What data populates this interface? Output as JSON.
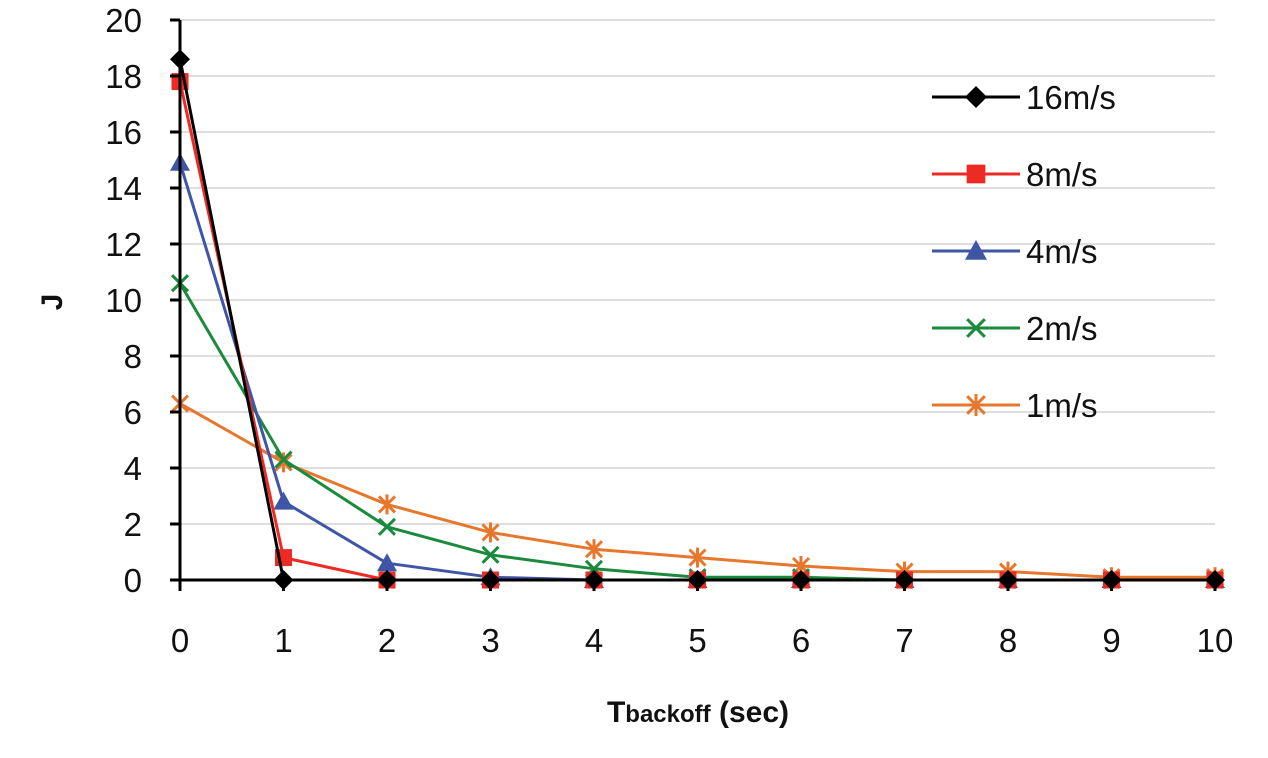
{
  "chart_data": {
    "type": "line",
    "title": "",
    "xlabel_main": "T",
    "xlabel_sub": "backoff",
    "xlabel_suffix": " (sec)",
    "ylabel": "J",
    "xlim": [
      0,
      10
    ],
    "ylim": [
      0,
      20
    ],
    "x_ticks": [
      0,
      1,
      2,
      3,
      4,
      5,
      6,
      7,
      8,
      9,
      10
    ],
    "y_ticks": [
      0,
      2,
      4,
      6,
      8,
      10,
      12,
      14,
      16,
      18,
      20
    ],
    "grid": "horizontal",
    "legend_position": "top-right",
    "x": [
      0,
      1,
      2,
      3,
      4,
      5,
      6,
      7,
      8,
      9,
      10
    ],
    "series": [
      {
        "name": "16m/s",
        "color": "#000000",
        "marker": "diamond",
        "values": [
          18.6,
          0.0,
          0.0,
          0.0,
          0.0,
          0.0,
          0.0,
          0.0,
          0.0,
          0.0,
          0.0
        ]
      },
      {
        "name": "8m/s",
        "color": "#ee2a24",
        "marker": "square",
        "values": [
          17.8,
          0.8,
          0.0,
          0.0,
          0.0,
          0.0,
          0.0,
          0.0,
          0.0,
          0.0,
          0.0
        ]
      },
      {
        "name": "4m/s",
        "color": "#3f55a6",
        "marker": "triangle",
        "values": [
          14.9,
          2.8,
          0.6,
          0.1,
          0.0,
          0.0,
          0.0,
          0.0,
          0.0,
          0.0,
          0.0
        ]
      },
      {
        "name": "2m/s",
        "color": "#1a8a3c",
        "marker": "x",
        "values": [
          10.6,
          4.3,
          1.9,
          0.9,
          0.4,
          0.1,
          0.1,
          0.0,
          0.0,
          0.0,
          0.0
        ]
      },
      {
        "name": "1m/s",
        "color": "#e8772e",
        "marker": "star",
        "values": [
          6.3,
          4.2,
          2.7,
          1.7,
          1.1,
          0.8,
          0.5,
          0.3,
          0.3,
          0.1,
          0.1
        ]
      }
    ]
  }
}
